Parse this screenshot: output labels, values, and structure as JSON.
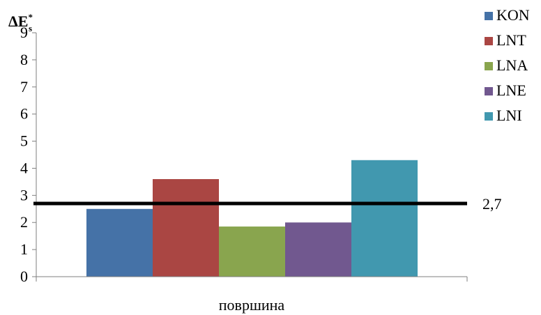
{
  "chart_data": {
    "type": "bar",
    "ylabel": {
      "main": "ΔE",
      "sup": "*",
      "sub": "s"
    },
    "xlabel": "",
    "categories": [
      "површина"
    ],
    "series": [
      {
        "name": "KON",
        "values": [
          2.5
        ],
        "color": "#4572A7"
      },
      {
        "name": "LNT",
        "values": [
          3.6
        ],
        "color": "#AA4643"
      },
      {
        "name": "LNA",
        "values": [
          1.85
        ],
        "color": "#89A54E"
      },
      {
        "name": "LNE",
        "values": [
          2.0
        ],
        "color": "#71588F"
      },
      {
        "name": "LNI",
        "values": [
          4.3
        ],
        "color": "#4198AF"
      }
    ],
    "ylim": [
      0,
      9
    ],
    "yticks": [
      0,
      1,
      2,
      3,
      4,
      5,
      6,
      7,
      8,
      9
    ],
    "reference_line": {
      "value": 2.7,
      "label": "2,7",
      "color": "#000000"
    },
    "grid": false,
    "legend": "right"
  }
}
